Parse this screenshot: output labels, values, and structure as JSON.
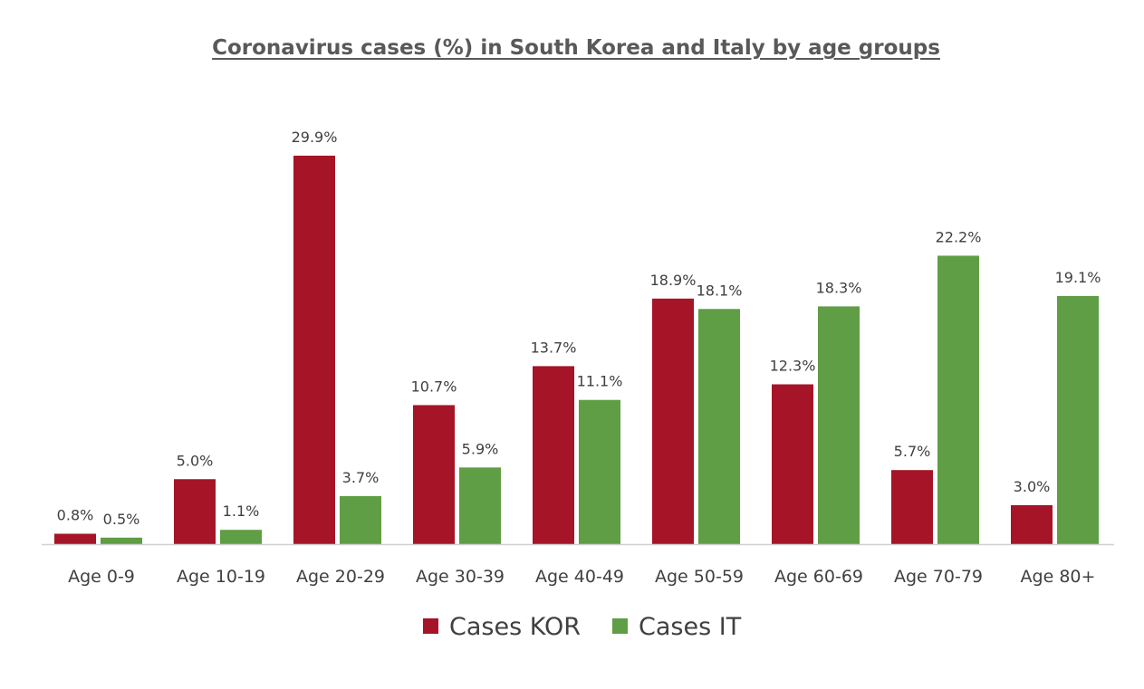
{
  "chart_data": {
    "type": "bar",
    "title": "Coronavirus cases (%) in South Korea and Italy by age groups",
    "xlabel": "",
    "ylabel": "",
    "ylim": [
      0,
      30
    ],
    "grid": false,
    "legend_position": "bottom",
    "categories": [
      "Age 0-9",
      "Age 10-19",
      "Age 20-29",
      "Age 30-39",
      "Age 40-49",
      "Age 50-59",
      "Age 60-69",
      "Age 70-79",
      "Age 80+"
    ],
    "series": [
      {
        "name": "Cases KOR",
        "color": "#A61427",
        "values": [
          0.8,
          5.0,
          29.9,
          10.7,
          13.7,
          18.9,
          12.3,
          5.7,
          3.0
        ],
        "labels": [
          "0.8%",
          "5.0%",
          "29.9%",
          "10.7%",
          "13.7%",
          "18.9%",
          "12.3%",
          "5.7%",
          "3.0%"
        ]
      },
      {
        "name": "Cases IT",
        "color": "#5F9E44",
        "values": [
          0.5,
          1.1,
          3.7,
          5.9,
          11.1,
          18.1,
          18.3,
          22.2,
          19.1
        ],
        "labels": [
          "0.5%",
          "1.1%",
          "3.7%",
          "5.9%",
          "11.1%",
          "18.1%",
          "18.3%",
          "22.2%",
          "19.1%"
        ]
      }
    ]
  }
}
